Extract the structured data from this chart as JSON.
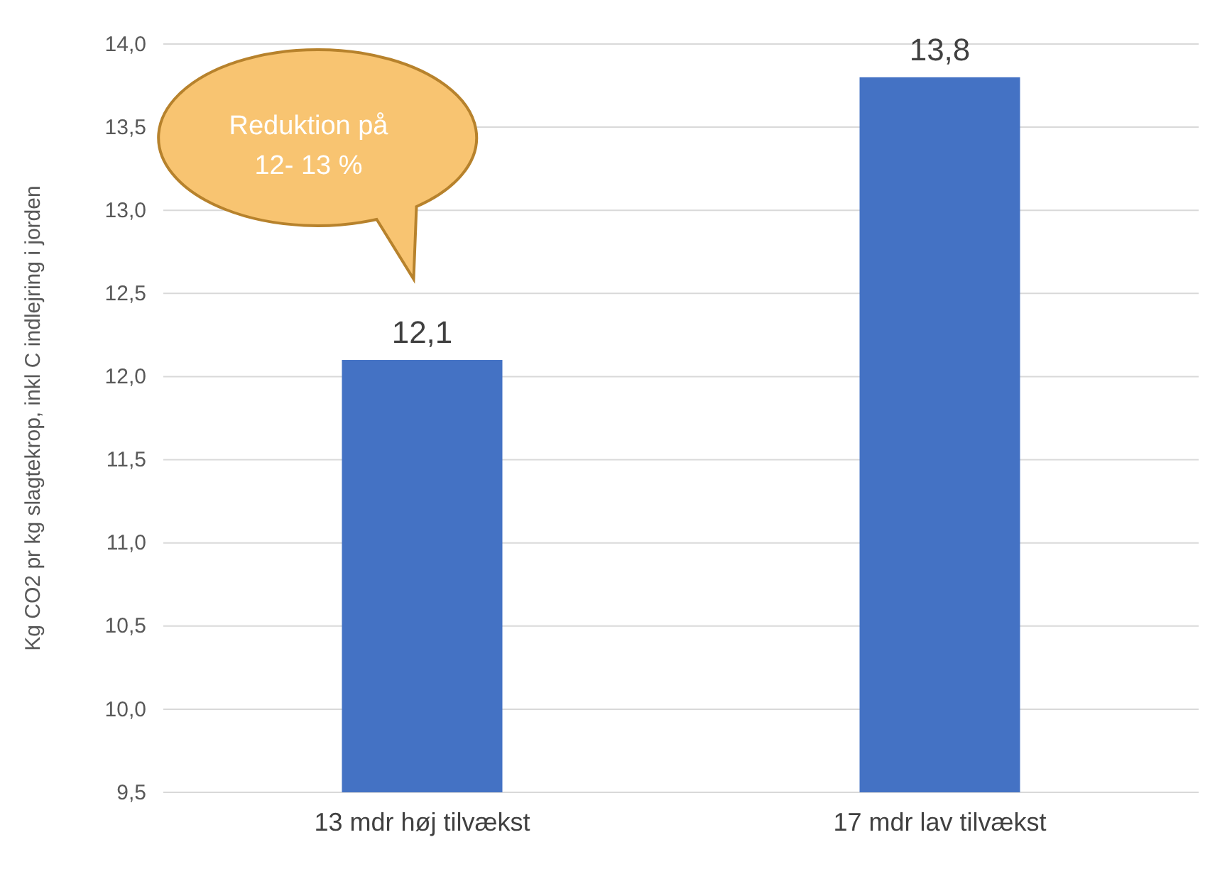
{
  "chart_data": {
    "type": "bar",
    "ylabel": "Kg CO2 pr kg slagtekrop, inkl C indlejring i jorden",
    "categories": [
      "13 mdr høj tilvækst",
      "17 mdr lav tilvækst"
    ],
    "values": [
      12.1,
      13.8
    ],
    "color": "#4472c4",
    "value_labels": [
      "12,1",
      "13,8"
    ],
    "ylim": [
      9.5,
      14.0
    ],
    "yticks": [
      {
        "value": 9.5,
        "label": "9,5"
      },
      {
        "value": 10,
        "label": "10,0"
      },
      {
        "value": 10.5,
        "label": "10,5"
      },
      {
        "value": 11,
        "label": "11,0"
      },
      {
        "value": 11.5,
        "label": "11,5"
      },
      {
        "value": 12,
        "label": "12,0"
      },
      {
        "value": 12.5,
        "label": "12,5"
      },
      {
        "value": 13,
        "label": "13,0"
      },
      {
        "value": 13.5,
        "label": "13,5"
      },
      {
        "value": 14,
        "label": "14,0"
      }
    ],
    "grid": "y",
    "annotations": [
      "Reduktion på 12- 13 %"
    ]
  }
}
